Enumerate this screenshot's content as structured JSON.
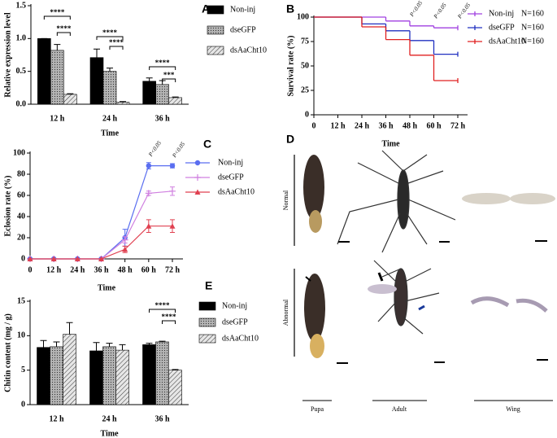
{
  "chart_data": [
    {
      "type": "bar",
      "panel_label": "A",
      "y_label": "Relative expression level",
      "x_label": "Time",
      "categories": [
        "12 h",
        "24 h",
        "36 h"
      ],
      "series": [
        {
          "name": "Non-inj",
          "color": "#000000",
          "pattern": "solid",
          "values": [
            1.0,
            0.71,
            0.35
          ],
          "errors": [
            0,
            0.13,
            0.05
          ]
        },
        {
          "name": "dseGFP",
          "color": "#b4b4b4",
          "pattern": "dots",
          "values": [
            0.82,
            0.5,
            0.3
          ],
          "errors": [
            0.09,
            0.05,
            0.06
          ]
        },
        {
          "name": "dsAaCht10",
          "color": "#e6e6e6",
          "pattern": "hatch",
          "values": [
            0.15,
            0.03,
            0.1
          ],
          "errors": [
            0.01,
            0.01,
            0.01
          ]
        }
      ],
      "ylim": [
        0,
        1.5
      ],
      "yticks": [
        {
          "value": 0,
          "label": "0.0"
        },
        0.5,
        {
          "value": 1,
          "label": "1.0"
        },
        1.5
      ],
      "annotations": [
        "****",
        "****",
        "****",
        "****",
        "****",
        "***"
      ]
    },
    {
      "type": "step",
      "panel_label": "B",
      "y_label": "Survival rate (%)",
      "x_label": "Time",
      "x": [
        0,
        12,
        24,
        36,
        48,
        60,
        72
      ],
      "series": [
        {
          "name": "Non-inj",
          "note": "N=160",
          "color": "#a040e0",
          "values": [
            100,
            100,
            100,
            96,
            91,
            89,
            89
          ]
        },
        {
          "name": "dseGFP",
          "note": "N=160",
          "color": "#2030c0",
          "values": [
            100,
            100,
            93,
            86,
            76,
            62,
            62
          ]
        },
        {
          "name": "dsAaCht10",
          "note": "N=160",
          "color": "#e02020",
          "values": [
            100,
            100,
            90,
            77,
            61,
            35,
            35
          ]
        }
      ],
      "xlim": [
        0,
        72
      ],
      "xticks": [
        0,
        {
          "value": 12,
          "label": "12 h"
        },
        {
          "value": 24,
          "label": "24 h"
        },
        {
          "value": 36,
          "label": "36 h"
        },
        {
          "value": 48,
          "label": "48 h"
        },
        {
          "value": 60,
          "label": "60 h"
        },
        {
          "value": 72,
          "label": "72 h"
        }
      ],
      "ylim": [
        0,
        100
      ],
      "yticks": [
        0,
        25,
        50,
        75,
        100
      ],
      "annotations": [
        "P<0.05",
        "P<0.05",
        "P<0.05"
      ]
    },
    {
      "type": "line",
      "panel_label": "C",
      "y_label": "Eclosion rate (%)",
      "x_label": "Time",
      "x": [
        0,
        12,
        24,
        36,
        48,
        60,
        72
      ],
      "series": [
        {
          "name": "Non-inj",
          "color": "#5a6ef0",
          "marker": "circle",
          "values": [
            0,
            0,
            0,
            0,
            20,
            88,
            88
          ],
          "errors": [
            0,
            0,
            0,
            0,
            8,
            3,
            2
          ]
        },
        {
          "name": "dseGFP",
          "color": "#d080e0",
          "marker": "plus",
          "values": [
            0,
            0,
            0,
            0,
            18,
            62,
            64
          ],
          "errors": [
            0,
            0,
            0,
            0,
            3,
            2,
            4
          ]
        },
        {
          "name": "dsAaCht10",
          "color": "#e04050",
          "marker": "triangle",
          "values": [
            0,
            0,
            0,
            0,
            9,
            31,
            31
          ],
          "errors": [
            0,
            0,
            0,
            0,
            3,
            6,
            6
          ]
        }
      ],
      "xlim": [
        0,
        72
      ],
      "xticks": [
        0,
        {
          "value": 12,
          "label": "12 h"
        },
        {
          "value": 24,
          "label": "24 h"
        },
        {
          "value": 36,
          "label": "36 h"
        },
        {
          "value": 48,
          "label": "48 h"
        },
        {
          "value": 60,
          "label": "60 h"
        },
        {
          "value": 72,
          "label": "72 h"
        }
      ],
      "ylim": [
        0,
        100
      ],
      "yticks": [
        0,
        20,
        40,
        60,
        80,
        100
      ],
      "annotations": [
        "P<0.05",
        "P<0.05"
      ]
    },
    {
      "type": "bar",
      "panel_label": "E",
      "y_label": "Chitin content (mg / g)",
      "x_label": "Time",
      "categories": [
        "12 h",
        "24 h",
        "36 h"
      ],
      "series": [
        {
          "name": "Non-inj",
          "color": "#000000",
          "pattern": "solid",
          "values": [
            8.3,
            7.8,
            8.7
          ],
          "errors": [
            1.0,
            1.2,
            0.2
          ]
        },
        {
          "name": "dseGFP",
          "color": "#b4b4b4",
          "pattern": "dots",
          "values": [
            8.4,
            8.4,
            9.1
          ],
          "errors": [
            0.7,
            0.5,
            0.1
          ]
        },
        {
          "name": "dsAaCht10",
          "color": "#e6e6e6",
          "pattern": "hatch",
          "values": [
            10.2,
            7.9,
            5.0
          ],
          "errors": [
            1.7,
            0.8,
            0.1
          ]
        }
      ],
      "ylim": [
        0,
        15
      ],
      "yticks": [
        0,
        5,
        10,
        15
      ],
      "annotations": [
        "****",
        "****"
      ]
    }
  ],
  "figure_d": {
    "panel_label": "D",
    "rows": [
      "Normal",
      "Abnormal"
    ],
    "columns": [
      "Pupa",
      "Adult",
      "Wing"
    ]
  }
}
